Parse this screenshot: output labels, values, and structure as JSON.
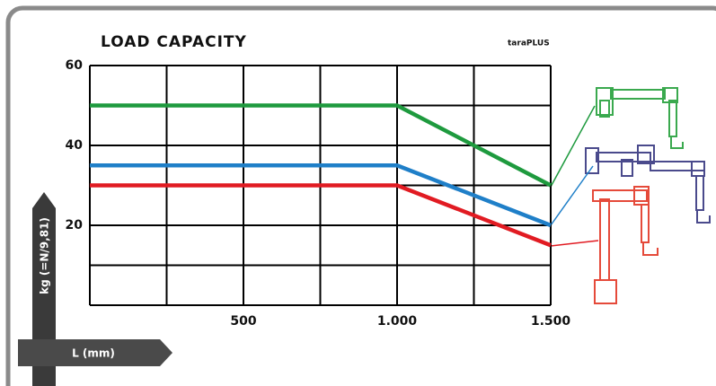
{
  "chart_data": {
    "type": "line",
    "title": "LOAD CAPACITY",
    "subtitle": "taraPLUS",
    "y_label": "kg (=N/9,81)",
    "x_label": "L (mm)",
    "x": [
      0,
      1000,
      1500
    ],
    "series": [
      {
        "color": "#1e9a3e",
        "values": [
          50,
          50,
          30
        ]
      },
      {
        "color": "#1f7fc8",
        "values": [
          35,
          35,
          20
        ]
      },
      {
        "color": "#e11b22",
        "values": [
          30,
          30,
          15
        ]
      }
    ],
    "xlim": [
      0,
      1500
    ],
    "ylim": [
      0,
      60
    ],
    "xticks": [
      500,
      {
        "value": 1000,
        "label": "1.000"
      },
      {
        "value": 1500,
        "label": "1.500"
      }
    ],
    "yticks": [
      20,
      40,
      60
    ],
    "xgrid": [
      0,
      250,
      500,
      750,
      1000,
      1250,
      1500
    ],
    "ygrid": [
      0,
      10,
      20,
      30,
      40,
      50,
      60
    ]
  }
}
